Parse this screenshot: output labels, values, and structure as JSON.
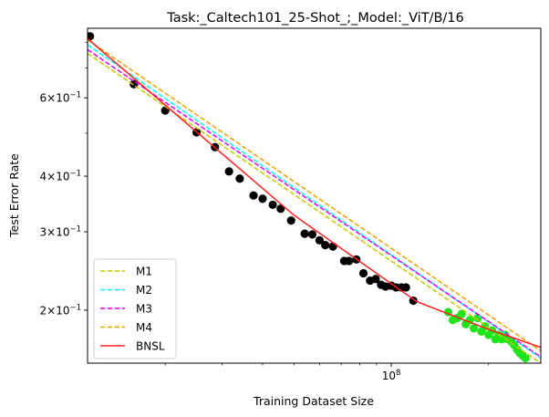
{
  "chart_data": {
    "type": "scatter",
    "title": "Task:_Caltech101_25-Shot_;_Model:_ViT/B/16",
    "xlabel": "Training Dataset Size",
    "ylabel": "Test Error Rate",
    "x_scale": "log",
    "y_scale": "log",
    "xlim": [
      11500000,
      290000000
    ],
    "ylim": [
      0.152,
      0.86
    ],
    "x_ticks": [
      {
        "value": 100000000,
        "base": "10",
        "exp": "8"
      }
    ],
    "y_ticks": [
      {
        "value": 0.2,
        "mant": "2",
        "base": "10",
        "exp": "−1"
      },
      {
        "value": 0.3,
        "mant": "3",
        "base": "10",
        "exp": "−1"
      },
      {
        "value": 0.4,
        "mant": "4",
        "base": "10",
        "exp": "−1"
      },
      {
        "value": 0.6,
        "mant": "6",
        "base": "10",
        "exp": "−1"
      }
    ],
    "x_minor_ticks": [
      20000000,
      30000000,
      40000000,
      50000000,
      60000000,
      70000000,
      80000000,
      90000000,
      200000000
    ],
    "y_minor_ticks": [
      0.5,
      0.7,
      0.8
    ],
    "grid": false,
    "legend_position": "lower-left",
    "colors": {
      "train_points": "#000000",
      "test_points": "#1ee41a"
    },
    "train_points": {
      "x": [
        11700000.0,
        16000000.0,
        20000000.0,
        25000000.0,
        28500000.0,
        31500000.0,
        34000000.0,
        37500000.0,
        40000000.0,
        43000000.0,
        45500000.0,
        49000000.0,
        54000000.0,
        57000000.0,
        60000000.0,
        62500000.0,
        66000000.0,
        71500000.0,
        74000000.0,
        78000000.0,
        82000000.0,
        86000000.0,
        89500000.0,
        93000000.0,
        96000000.0,
        100000000.0,
        103500000.0,
        107500000.0,
        111000000.0,
        117000000.0
      ],
      "y": [
        0.825,
        0.644,
        0.562,
        0.502,
        0.465,
        0.41,
        0.395,
        0.362,
        0.356,
        0.345,
        0.338,
        0.318,
        0.297,
        0.296,
        0.287,
        0.28,
        0.278,
        0.258,
        0.258,
        0.26,
        0.242,
        0.233,
        0.235,
        0.228,
        0.226,
        0.227,
        0.225,
        0.225,
        0.225,
        0.21
      ]
    },
    "test_points": {
      "x": [
        150000000.0,
        155000000.0,
        160000000.0,
        165000000.0,
        170000000.0,
        175000000.0,
        180000000.0,
        185000000.0,
        190000000.0,
        195000000.0,
        200000000.0,
        205000000.0,
        210000000.0,
        215000000.0,
        220000000.0,
        225000000.0,
        230000000.0,
        235000000.0,
        240000000.0,
        245000000.0,
        250000000.0,
        255000000.0,
        260000000.0
      ],
      "y": [
        0.198,
        0.19,
        0.192,
        0.196,
        0.186,
        0.19,
        0.182,
        0.192,
        0.179,
        0.184,
        0.176,
        0.18,
        0.172,
        0.176,
        0.172,
        0.176,
        0.172,
        0.17,
        0.167,
        0.163,
        0.16,
        0.158,
        0.156
      ]
    },
    "series": [
      {
        "name": "M1",
        "color": "#c8c800",
        "dash": "dashed",
        "x": [
          11500000.0,
          290000000.0
        ],
        "y": [
          0.755,
          0.152
        ]
      },
      {
        "name": "M2",
        "color": "#00ffff",
        "dash": "dashed",
        "x": [
          11500000.0,
          290000000.0
        ],
        "y": [
          0.79,
          0.156
        ]
      },
      {
        "name": "M3",
        "color": "#e600e6",
        "dash": "dashed",
        "x": [
          11500000.0,
          290000000.0
        ],
        "y": [
          0.77,
          0.157
        ]
      },
      {
        "name": "M4",
        "color": "#f0a000",
        "dash": "dashed",
        "x": [
          11500000.0,
          290000000.0
        ],
        "y": [
          0.81,
          0.162
        ]
      },
      {
        "name": "BNSL",
        "color": "#ff2020",
        "dash": "solid",
        "x": [
          11500000.0,
          50000000.0,
          120000000.0,
          200000000.0,
          290000000.0
        ],
        "y": [
          0.815,
          0.327,
          0.209,
          0.181,
          0.165
        ]
      }
    ]
  }
}
